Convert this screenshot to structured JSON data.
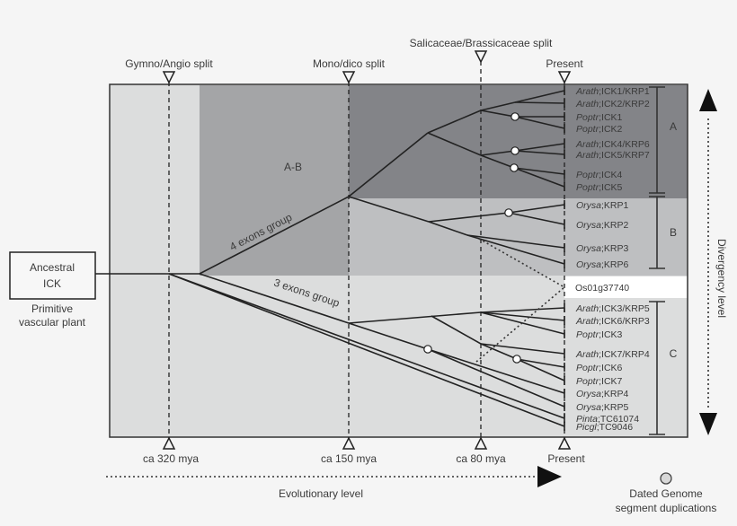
{
  "top_markers": {
    "gymno_angio": "Gymno/Angio split",
    "mono_dico": "Mono/dico split",
    "salicaceae_brassicaceae": "Salicaceae/Brassicaceae split",
    "present": "Present"
  },
  "bottom_markers": {
    "t320": "ca 320 mya",
    "t150": "ca 150 mya",
    "t80": "ca 80 mya",
    "present": "Present"
  },
  "ancestor": {
    "line1": "Ancestral",
    "line2": "ICK",
    "caption1": "Primitive",
    "caption2": "vascular plant"
  },
  "groups": {
    "ab": "A-B",
    "four_exons": "4 exons group",
    "three_exons": "3 exons group",
    "a": "A",
    "b": "B",
    "c": "C"
  },
  "tips": [
    {
      "genus": "Arath",
      "gene": ";ICK1/KRP1"
    },
    {
      "genus": "Arath",
      "gene": ";ICK2/KRP2"
    },
    {
      "genus": "Poptr",
      "gene": ";ICK1"
    },
    {
      "genus": "Poptr",
      "gene": ";ICK2"
    },
    {
      "genus": "Arath",
      "gene": ";ICK4/KRP6"
    },
    {
      "genus": "Arath",
      "gene": ";ICK5/KRP7"
    },
    {
      "genus": "Poptr",
      "gene": ";ICK4"
    },
    {
      "genus": "Poptr",
      "gene": ";ICK5"
    },
    {
      "genus": "Orysa",
      "gene": ";KRP1"
    },
    {
      "genus": "Orysa",
      "gene": ";KRP2"
    },
    {
      "genus": "Orysa",
      "gene": ";KRP3"
    },
    {
      "genus": "Orysa",
      "gene": ";KRP6"
    },
    {
      "genus": "",
      "gene": "Os01g37740"
    },
    {
      "genus": "Arath",
      "gene": ";ICK3/KRP5"
    },
    {
      "genus": "Arath",
      "gene": ";ICK6/KRP3"
    },
    {
      "genus": "Poptr",
      "gene": ";ICK3"
    },
    {
      "genus": "Arath",
      "gene": ";ICK7/KRP4"
    },
    {
      "genus": "Poptr",
      "gene": ";ICK6"
    },
    {
      "genus": "Poptr",
      "gene": ";ICK7"
    },
    {
      "genus": "Orysa",
      "gene": ";KRP4"
    },
    {
      "genus": "Orysa",
      "gene": ";KRP5"
    },
    {
      "genus": "Pinta",
      "gene": ";TC61074"
    },
    {
      "genus": "Picgl",
      "gene": ";TC9046"
    }
  ],
  "axes": {
    "evolutionary": "Evolutionary level",
    "divergency": "Divergency level"
  },
  "legend": {
    "line1": "Dated Genome",
    "line2": "segment duplications"
  },
  "colors": {
    "background": "#f5f5f5",
    "light_region": "#dcdddd",
    "ab_region": "#a4a5a7",
    "a_region": "#838488",
    "b_region": "#bebfc1",
    "highlight_strip": "#ffffff"
  }
}
